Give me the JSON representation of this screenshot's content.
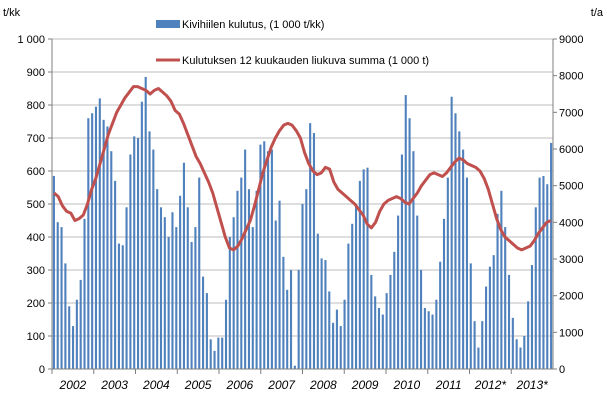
{
  "chart_data": {
    "type": "bar+line",
    "left_unit": "t/kk",
    "right_unit": "t/a",
    "left_ticks": [
      "0",
      "100",
      "200",
      "300",
      "400",
      "500",
      "600",
      "700",
      "800",
      "900",
      "1 000"
    ],
    "right_ticks": [
      "0",
      "1000",
      "2000",
      "3000",
      "4000",
      "5000",
      "6000",
      "7000",
      "8000",
      "9000"
    ],
    "left_ylim": [
      0,
      1000
    ],
    "right_ylim": [
      0,
      9000
    ],
    "x_labels": [
      "2002",
      "2003",
      "2004",
      "2005",
      "2006",
      "2007",
      "2008",
      "2009",
      "2010",
      "2011",
      "2012*",
      "2013*"
    ],
    "legend_top_right": true,
    "series": [
      {
        "name": "Kivihiilen kulutus, (1 000 t/kk)",
        "kind": "bar",
        "axis": "left",
        "color": "#4f81bd",
        "values": [
          585,
          445,
          430,
          320,
          190,
          130,
          210,
          270,
          455,
          760,
          775,
          795,
          820,
          755,
          735,
          660,
          570,
          380,
          375,
          490,
          650,
          705,
          700,
          810,
          885,
          720,
          665,
          545,
          490,
          460,
          400,
          475,
          430,
          525,
          625,
          490,
          385,
          430,
          580,
          280,
          230,
          90,
          55,
          95,
          95,
          210,
          400,
          460,
          540,
          580,
          665,
          545,
          430,
          540,
          680,
          690,
          660,
          665,
          450,
          510,
          340,
          240,
          300,
          10,
          300,
          500,
          545,
          745,
          715,
          410,
          335,
          330,
          235,
          140,
          180,
          130,
          210,
          380,
          440,
          500,
          570,
          605,
          610,
          285,
          220,
          185,
          165,
          230,
          285,
          355,
          465,
          650,
          830,
          760,
          660,
          465,
          300,
          185,
          175,
          165,
          210,
          325,
          455,
          580,
          825,
          775,
          720,
          665,
          580,
          320,
          145,
          65,
          145,
          250,
          310,
          345,
          470,
          540,
          430,
          285,
          155,
          90,
          65,
          100,
          205,
          315,
          490,
          580,
          585,
          560,
          685
        ]
      },
      {
        "name": "Kulutuksen 12 kuukauden liukuva summa (1 000 t)",
        "kind": "line",
        "axis": "right",
        "color": "#c0504d",
        "values": [
          4800,
          4700,
          4450,
          4300,
          4250,
          4050,
          4100,
          4200,
          4500,
          4900,
          5200,
          5600,
          6000,
          6400,
          6700,
          7000,
          7200,
          7400,
          7550,
          7700,
          7700,
          7650,
          7600,
          7500,
          7600,
          7650,
          7550,
          7450,
          7300,
          7050,
          6950,
          6700,
          6400,
          6100,
          5800,
          5600,
          5350,
          5100,
          4800,
          4400,
          4000,
          3600,
          3300,
          3250,
          3350,
          3550,
          3800,
          4050,
          4450,
          4900,
          5350,
          5700,
          6050,
          6300,
          6500,
          6650,
          6700,
          6650,
          6500,
          6300,
          5900,
          5600,
          5400,
          5300,
          5350,
          5500,
          5450,
          5100,
          4900,
          4800,
          4700,
          4600,
          4500,
          4350,
          4200,
          3950,
          3850,
          4000,
          4300,
          4500,
          4600,
          4650,
          4700,
          4650,
          4550,
          4500,
          4650,
          4800,
          5000,
          5150,
          5300,
          5350,
          5300,
          5250,
          5350,
          5500,
          5650,
          5750,
          5700,
          5600,
          5550,
          5500,
          5400,
          5200,
          4900,
          4500,
          4100,
          3800,
          3600,
          3500,
          3400,
          3300,
          3250,
          3300,
          3350,
          3500,
          3700,
          3850,
          4000,
          4050
        ]
      }
    ]
  }
}
